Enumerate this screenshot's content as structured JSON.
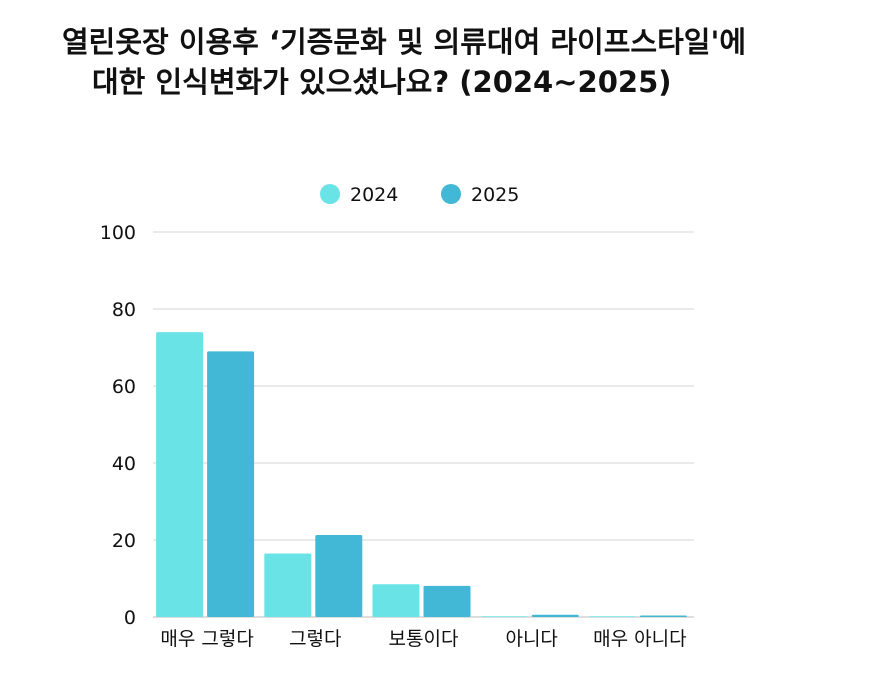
{
  "chart_data": {
    "type": "bar",
    "title_line1": "열린옷장 이용후 ‘기증문화 및 의류대여 라이프스타일'에",
    "title_line2": "대한 인식변화가 있으셨나요? (2024~2025)",
    "xlabel": "",
    "ylabel": "",
    "ylim": [
      0,
      100
    ],
    "yticks": [
      0,
      20,
      40,
      60,
      80,
      100
    ],
    "grid": true,
    "legend_position": "top-center",
    "categories": [
      "매우 그렇다",
      "그렇다",
      "보통이다",
      "아니다",
      "매우 아니다"
    ],
    "series": [
      {
        "name": "2024",
        "color": "#6ae3e6",
        "values": [
          74,
          16.5,
          8.5,
          0.2,
          0.2
        ]
      },
      {
        "name": "2025",
        "color": "#42b8d6",
        "values": [
          69,
          21.3,
          8.1,
          0.6,
          0.4
        ]
      }
    ]
  }
}
